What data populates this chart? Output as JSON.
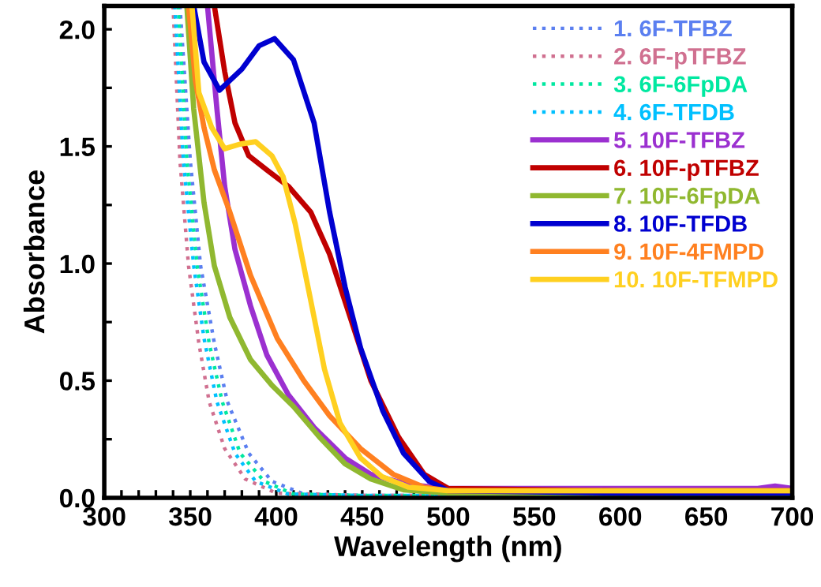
{
  "chart_data": {
    "type": "line",
    "xlabel": "Wavelength (nm)",
    "ylabel": "Absorbance",
    "xlim": [
      300,
      700
    ],
    "ylim": [
      0,
      2.1
    ],
    "xticks": [
      300,
      {
        "value": 310,
        "label": null
      },
      {
        "value": 320,
        "label": null
      },
      {
        "value": 330,
        "label": null
      },
      {
        "value": 340,
        "label": null
      },
      350,
      {
        "value": 360,
        "label": null
      },
      {
        "value": 370,
        "label": null
      },
      {
        "value": 380,
        "label": null
      },
      {
        "value": 390,
        "label": null
      },
      400,
      {
        "value": 410,
        "label": null
      },
      {
        "value": 420,
        "label": null
      },
      {
        "value": 430,
        "label": null
      },
      {
        "value": 440,
        "label": null
      },
      450,
      {
        "value": 460,
        "label": null
      },
      {
        "value": 470,
        "label": null
      },
      {
        "value": 480,
        "label": null
      },
      {
        "value": 490,
        "label": null
      },
      500,
      {
        "value": 510,
        "label": null
      },
      {
        "value": 520,
        "label": null
      },
      {
        "value": 530,
        "label": null
      },
      {
        "value": 540,
        "label": null
      },
      550,
      {
        "value": 560,
        "label": null
      },
      {
        "value": 570,
        "label": null
      },
      {
        "value": 580,
        "label": null
      },
      {
        "value": 590,
        "label": null
      },
      600,
      {
        "value": 610,
        "label": null
      },
      {
        "value": 620,
        "label": null
      },
      {
        "value": 630,
        "label": null
      },
      {
        "value": 640,
        "label": null
      },
      650,
      {
        "value": 660,
        "label": null
      },
      {
        "value": 670,
        "label": null
      },
      {
        "value": 680,
        "label": null
      },
      {
        "value": 690,
        "label": null
      },
      700
    ],
    "yticks": [
      {
        "value": 0,
        "label": "0.0"
      },
      {
        "value": 0.25,
        "label": null
      },
      {
        "value": 0.5,
        "label": "0.5"
      },
      {
        "value": 0.75,
        "label": null
      },
      {
        "value": 1,
        "label": "1.0"
      },
      {
        "value": 1.25,
        "label": null
      },
      {
        "value": 1.5,
        "label": "1.5"
      },
      {
        "value": 1.75,
        "label": null
      },
      {
        "value": 2,
        "label": "2.0"
      }
    ],
    "grid": false,
    "legend": "top right",
    "marker": "none",
    "series": [
      {
        "name": "1. 6F-TFBZ",
        "color": "#5b7ff0",
        "line_style": "dotted",
        "x": [
          344,
          350,
          356,
          364,
          371.6,
          384,
          397.5,
          416,
          450,
          500,
          600,
          700
        ],
        "values": [
          2.1,
          1.44,
          0.99,
          0.66,
          0.41,
          0.19,
          0.07,
          0.016,
          0.01,
          0.01,
          0.01,
          0.01
        ]
      },
      {
        "name": "2. 6F-pTFBZ",
        "color": "#d07090",
        "line_style": "dotted",
        "x": [
          340,
          344,
          349,
          355,
          361,
          370,
          382,
          400,
          450,
          500,
          600,
          700
        ],
        "values": [
          2.1,
          1.44,
          0.99,
          0.66,
          0.41,
          0.21,
          0.08,
          0.02,
          0.01,
          0.01,
          0.01,
          0.01
        ]
      },
      {
        "name": "3. 6F-6FpDA",
        "color": "#00e8a0",
        "line_style": "dotted",
        "x": [
          343,
          348,
          354,
          361,
          368.6,
          379,
          393,
          410,
          450,
          500,
          600,
          700
        ],
        "values": [
          2.1,
          1.44,
          0.99,
          0.66,
          0.41,
          0.19,
          0.07,
          0.016,
          0.01,
          0.01,
          0.01,
          0.01
        ]
      },
      {
        "name": "4. 6F-TFDB",
        "color": "#00c0ff",
        "line_style": "dotted",
        "x": [
          341,
          346,
          352,
          358,
          365.5,
          376,
          388,
          407,
          450,
          500,
          600,
          700
        ],
        "values": [
          2.1,
          1.44,
          0.99,
          0.68,
          0.41,
          0.19,
          0.07,
          0.016,
          0.01,
          0.01,
          0.01,
          0.01
        ]
      },
      {
        "name": "5. 10F-TFBZ",
        "color": "#9b30d0",
        "line_style": "solid",
        "x": [
          360,
          365.5,
          370,
          376,
          385,
          394.5,
          407,
          422,
          440,
          455,
          477,
          500,
          600,
          680,
          690,
          700
        ],
        "values": [
          2.1,
          1.66,
          1.33,
          1.06,
          0.82,
          0.61,
          0.44,
          0.3,
          0.17,
          0.1,
          0.056,
          0.04,
          0.04,
          0.04,
          0.05,
          0.04
        ]
      },
      {
        "name": "6. 10F-pTFBZ",
        "color": "#c00000",
        "line_style": "solid",
        "x": [
          364,
          370,
          376,
          384,
          394.5,
          407,
          420,
          431,
          443,
          455,
          471,
          486,
          500,
          600,
          700
        ],
        "values": [
          2.1,
          1.82,
          1.6,
          1.46,
          1.4,
          1.33,
          1.22,
          1.04,
          0.77,
          0.5,
          0.26,
          0.1,
          0.04,
          0.03,
          0.03
        ]
      },
      {
        "name": "7. 10F-6FpDA",
        "color": "#90b830",
        "line_style": "solid",
        "x": [
          348,
          352,
          358,
          364,
          373,
          385,
          397.5,
          410,
          425,
          440,
          455,
          474,
          500,
          600,
          700
        ],
        "values": [
          2.1,
          1.66,
          1.26,
          0.99,
          0.77,
          0.59,
          0.48,
          0.39,
          0.26,
          0.145,
          0.08,
          0.034,
          0.02,
          0.02,
          0.02
        ]
      },
      {
        "name": "8. 10F-TFDB",
        "color": "#0000d0",
        "line_style": "solid",
        "x": [
          352,
          358,
          367,
          380,
          390,
          399,
          410,
          422,
          431,
          440,
          449,
          462,
          474,
          489,
          500,
          600,
          700
        ],
        "values": [
          2.1,
          1.86,
          1.74,
          1.83,
          1.93,
          1.96,
          1.87,
          1.6,
          1.22,
          0.9,
          0.64,
          0.37,
          0.19,
          0.07,
          0.03,
          0.02,
          0.02
        ]
      },
      {
        "name": "9. 10F-4FMPD",
        "color": "#ff8020",
        "line_style": "solid",
        "x": [
          349,
          353,
          358,
          364,
          373,
          385,
          400.6,
          416,
          431,
          449,
          468,
          486,
          500,
          600,
          700
        ],
        "values": [
          2.1,
          1.78,
          1.58,
          1.4,
          1.22,
          0.95,
          0.68,
          0.5,
          0.35,
          0.21,
          0.1,
          0.045,
          0.03,
          0.03,
          0.03
        ]
      },
      {
        "name": "10. 10F-TFMPD",
        "color": "#ffd020",
        "line_style": "solid",
        "x": [
          351,
          355,
          362.5,
          370,
          379,
          388,
          397.5,
          404,
          411,
          419,
          428,
          437,
          449,
          461.5,
          477,
          500,
          600,
          700
        ],
        "values": [
          2.1,
          1.73,
          1.58,
          1.49,
          1.51,
          1.52,
          1.46,
          1.37,
          1.17,
          0.88,
          0.55,
          0.32,
          0.17,
          0.09,
          0.045,
          0.03,
          0.03,
          0.03
        ]
      }
    ]
  }
}
